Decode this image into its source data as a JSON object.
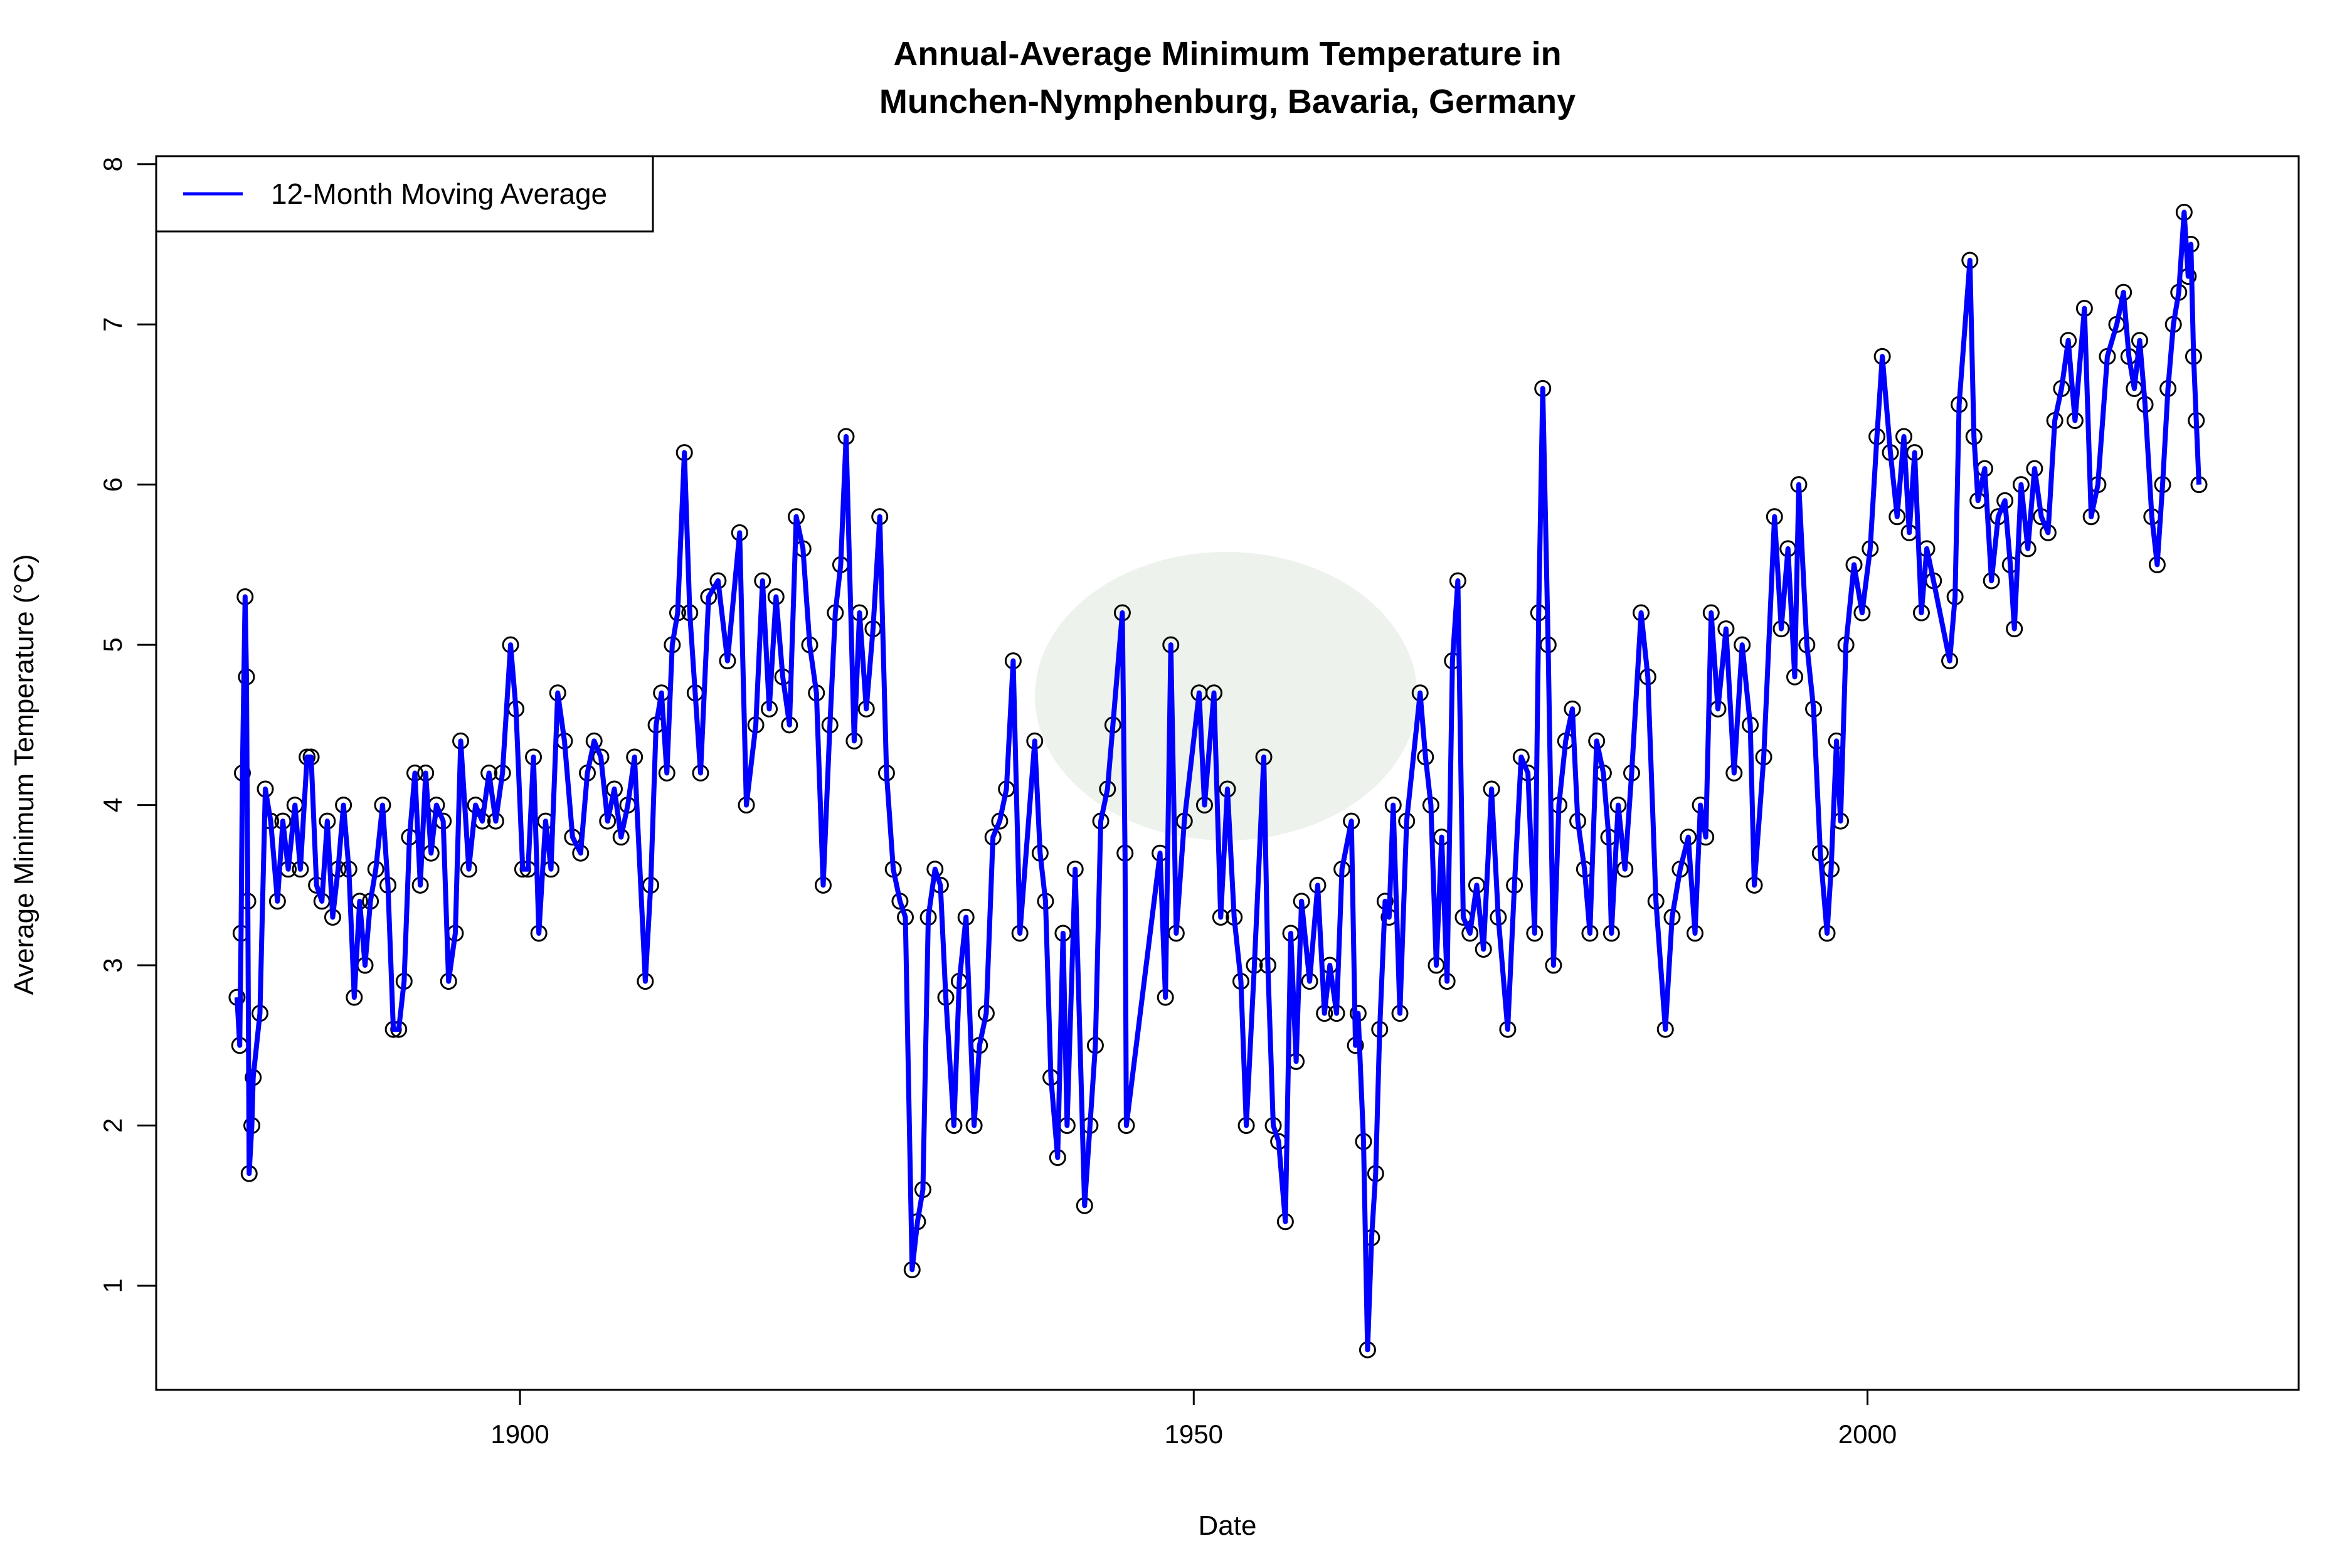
{
  "chart_data": {
    "type": "line",
    "title_line1": "Annual-Average Minimum Temperature in",
    "title_line2": "Munchen-Nymphenburg, Bavaria, Germany",
    "xlabel": "Date",
    "ylabel": "Average Minimum Temperature (°C)",
    "xlim": [
      1873,
      2032
    ],
    "ylim": [
      0.35,
      8.05
    ],
    "xticks": [
      1900,
      1950,
      2000
    ],
    "yticks": [
      1,
      2,
      3,
      4,
      5,
      6,
      7,
      8
    ],
    "grid": false,
    "legend": {
      "position": "top-left",
      "entries": [
        "12-Month Moving Average"
      ]
    },
    "colors": {
      "line": "#0000ff",
      "points": "#000000",
      "watermark": "#e6ece6"
    },
    "series": [
      {
        "name": "12-Month Moving Average",
        "points": [
          [
            1879.0,
            2.8
          ],
          [
            1879.2,
            2.5
          ],
          [
            1879.3,
            3.2
          ],
          [
            1879.4,
            4.2
          ],
          [
            1879.6,
            5.3
          ],
          [
            1879.7,
            4.8
          ],
          [
            1879.8,
            3.4
          ],
          [
            1879.9,
            1.7
          ],
          [
            1880.1,
            2.0
          ],
          [
            1880.2,
            2.3
          ],
          [
            1880.7,
            2.7
          ],
          [
            1881.1,
            4.1
          ],
          [
            1881.5,
            3.9
          ],
          [
            1882.0,
            3.4
          ],
          [
            1882.4,
            3.9
          ],
          [
            1882.8,
            3.6
          ],
          [
            1883.3,
            4.0
          ],
          [
            1883.7,
            3.6
          ],
          [
            1884.2,
            4.3
          ],
          [
            1884.5,
            4.3
          ],
          [
            1884.9,
            3.5
          ],
          [
            1885.3,
            3.4
          ],
          [
            1885.7,
            3.9
          ],
          [
            1886.1,
            3.3
          ],
          [
            1886.5,
            3.6
          ],
          [
            1886.9,
            4.0
          ],
          [
            1887.3,
            3.6
          ],
          [
            1887.7,
            2.8
          ],
          [
            1888.1,
            3.4
          ],
          [
            1888.5,
            3.0
          ],
          [
            1888.9,
            3.4
          ],
          [
            1889.3,
            3.6
          ],
          [
            1889.8,
            4.0
          ],
          [
            1890.2,
            3.5
          ],
          [
            1890.6,
            2.6
          ],
          [
            1891.0,
            2.6
          ],
          [
            1891.4,
            2.9
          ],
          [
            1891.8,
            3.8
          ],
          [
            1892.2,
            4.2
          ],
          [
            1892.6,
            3.5
          ],
          [
            1893.0,
            4.2
          ],
          [
            1893.4,
            3.7
          ],
          [
            1893.8,
            4.0
          ],
          [
            1894.3,
            3.9
          ],
          [
            1894.7,
            2.9
          ],
          [
            1895.2,
            3.2
          ],
          [
            1895.6,
            4.4
          ],
          [
            1896.2,
            3.6
          ],
          [
            1896.7,
            4.0
          ],
          [
            1897.2,
            3.9
          ],
          [
            1897.7,
            4.2
          ],
          [
            1898.2,
            3.9
          ],
          [
            1898.7,
            4.2
          ],
          [
            1899.3,
            5.0
          ],
          [
            1899.7,
            4.6
          ],
          [
            1900.2,
            3.6
          ],
          [
            1900.6,
            3.6
          ],
          [
            1901.0,
            4.3
          ],
          [
            1901.4,
            3.2
          ],
          [
            1901.9,
            3.9
          ],
          [
            1902.3,
            3.6
          ],
          [
            1902.8,
            4.7
          ],
          [
            1903.3,
            4.4
          ],
          [
            1903.9,
            3.8
          ],
          [
            1904.5,
            3.7
          ],
          [
            1905.0,
            4.2
          ],
          [
            1905.5,
            4.4
          ],
          [
            1906.0,
            4.3
          ],
          [
            1906.5,
            3.9
          ],
          [
            1907.0,
            4.1
          ],
          [
            1907.5,
            3.8
          ],
          [
            1908.0,
            4.0
          ],
          [
            1908.5,
            4.3
          ],
          [
            1909.3,
            2.9
          ],
          [
            1909.7,
            3.5
          ],
          [
            1910.1,
            4.5
          ],
          [
            1910.5,
            4.7
          ],
          [
            1910.9,
            4.2
          ],
          [
            1911.3,
            5.0
          ],
          [
            1911.7,
            5.2
          ],
          [
            1912.2,
            6.2
          ],
          [
            1912.6,
            5.2
          ],
          [
            1913.0,
            4.7
          ],
          [
            1913.4,
            4.2
          ],
          [
            1914.0,
            5.3
          ],
          [
            1914.7,
            5.4
          ],
          [
            1915.4,
            4.9
          ],
          [
            1916.3,
            5.7
          ],
          [
            1916.8,
            4.0
          ],
          [
            1917.5,
            4.5
          ],
          [
            1918.0,
            5.4
          ],
          [
            1918.5,
            4.6
          ],
          [
            1919.0,
            5.3
          ],
          [
            1919.5,
            4.8
          ],
          [
            1920.0,
            4.5
          ],
          [
            1920.5,
            5.8
          ],
          [
            1921.0,
            5.6
          ],
          [
            1921.5,
            5.0
          ],
          [
            1922.0,
            4.7
          ],
          [
            1922.5,
            3.5
          ],
          [
            1923.0,
            4.5
          ],
          [
            1923.4,
            5.2
          ],
          [
            1923.8,
            5.5
          ],
          [
            1924.2,
            6.3
          ],
          [
            1924.8,
            4.4
          ],
          [
            1925.2,
            5.2
          ],
          [
            1925.7,
            4.6
          ],
          [
            1926.2,
            5.1
          ],
          [
            1926.7,
            5.8
          ],
          [
            1927.2,
            4.2
          ],
          [
            1927.7,
            3.6
          ],
          [
            1928.2,
            3.4
          ],
          [
            1928.6,
            3.3
          ],
          [
            1929.1,
            1.1
          ],
          [
            1929.5,
            1.4
          ],
          [
            1929.9,
            1.6
          ],
          [
            1930.3,
            3.3
          ],
          [
            1930.8,
            3.6
          ],
          [
            1931.2,
            3.5
          ],
          [
            1931.6,
            2.8
          ],
          [
            1932.2,
            2.0
          ],
          [
            1932.6,
            2.9
          ],
          [
            1933.1,
            3.3
          ],
          [
            1933.7,
            2.0
          ],
          [
            1934.1,
            2.5
          ],
          [
            1934.6,
            2.7
          ],
          [
            1935.1,
            3.8
          ],
          [
            1935.6,
            3.9
          ],
          [
            1936.1,
            4.1
          ],
          [
            1936.6,
            4.9
          ],
          [
            1937.1,
            3.2
          ],
          [
            1938.2,
            4.4
          ],
          [
            1938.6,
            3.7
          ],
          [
            1939.0,
            3.4
          ],
          [
            1939.4,
            2.3
          ],
          [
            1939.9,
            1.8
          ],
          [
            1940.3,
            3.2
          ],
          [
            1940.6,
            2.0
          ],
          [
            1941.2,
            3.6
          ],
          [
            1941.9,
            1.5
          ],
          [
            1942.3,
            2.0
          ],
          [
            1942.7,
            2.5
          ],
          [
            1943.1,
            3.9
          ],
          [
            1943.6,
            4.1
          ],
          [
            1944.0,
            4.5
          ],
          [
            1944.7,
            5.2
          ],
          [
            1944.9,
            3.7
          ],
          [
            1945.0,
            2.0
          ],
          [
            1947.5,
            3.7
          ],
          [
            1947.9,
            2.8
          ],
          [
            1948.3,
            5.0
          ],
          [
            1948.7,
            3.2
          ],
          [
            1949.3,
            3.9
          ],
          [
            1950.4,
            4.7
          ],
          [
            1950.8,
            4.0
          ],
          [
            1951.5,
            4.7
          ],
          [
            1952.0,
            3.3
          ],
          [
            1952.5,
            4.1
          ],
          [
            1953.0,
            3.3
          ],
          [
            1953.5,
            2.9
          ],
          [
            1953.9,
            2.0
          ],
          [
            1954.5,
            3.0
          ],
          [
            1955.2,
            4.3
          ],
          [
            1955.5,
            3.0
          ],
          [
            1955.9,
            2.0
          ],
          [
            1956.3,
            1.9
          ],
          [
            1956.8,
            1.4
          ],
          [
            1957.2,
            3.2
          ],
          [
            1957.6,
            2.4
          ],
          [
            1958.0,
            3.4
          ],
          [
            1958.6,
            2.9
          ],
          [
            1959.2,
            3.5
          ],
          [
            1959.7,
            2.7
          ],
          [
            1960.1,
            3.0
          ],
          [
            1960.6,
            2.7
          ],
          [
            1961.0,
            3.6
          ],
          [
            1961.7,
            3.9
          ],
          [
            1962.0,
            2.5
          ],
          [
            1962.2,
            2.7
          ],
          [
            1962.6,
            1.9
          ],
          [
            1962.9,
            0.6
          ],
          [
            1963.2,
            1.3
          ],
          [
            1963.5,
            1.7
          ],
          [
            1963.8,
            2.6
          ],
          [
            1964.2,
            3.4
          ],
          [
            1964.5,
            3.3
          ],
          [
            1964.8,
            4.0
          ],
          [
            1965.3,
            2.7
          ],
          [
            1965.8,
            3.9
          ],
          [
            1966.8,
            4.7
          ],
          [
            1967.2,
            4.3
          ],
          [
            1967.6,
            4.0
          ],
          [
            1968.0,
            3.0
          ],
          [
            1968.4,
            3.8
          ],
          [
            1968.8,
            2.9
          ],
          [
            1969.2,
            4.9
          ],
          [
            1969.6,
            5.4
          ],
          [
            1970.0,
            3.3
          ],
          [
            1970.5,
            3.2
          ],
          [
            1971.0,
            3.5
          ],
          [
            1971.5,
            3.1
          ],
          [
            1972.1,
            4.1
          ],
          [
            1972.6,
            3.3
          ],
          [
            1973.3,
            2.6
          ],
          [
            1973.8,
            3.5
          ],
          [
            1974.3,
            4.3
          ],
          [
            1974.8,
            4.2
          ],
          [
            1975.3,
            3.2
          ],
          [
            1975.6,
            5.2
          ],
          [
            1975.9,
            6.6
          ],
          [
            1976.3,
            5.0
          ],
          [
            1976.7,
            3.0
          ],
          [
            1977.1,
            4.0
          ],
          [
            1977.6,
            4.4
          ],
          [
            1978.1,
            4.6
          ],
          [
            1978.5,
            3.9
          ],
          [
            1979.0,
            3.6
          ],
          [
            1979.4,
            3.2
          ],
          [
            1979.9,
            4.4
          ],
          [
            1980.4,
            4.2
          ],
          [
            1980.8,
            3.8
          ],
          [
            1981.0,
            3.2
          ],
          [
            1981.5,
            4.0
          ],
          [
            1982.0,
            3.6
          ],
          [
            1982.5,
            4.2
          ],
          [
            1983.2,
            5.2
          ],
          [
            1983.7,
            4.8
          ],
          [
            1984.3,
            3.4
          ],
          [
            1985.0,
            2.6
          ],
          [
            1985.5,
            3.3
          ],
          [
            1986.1,
            3.6
          ],
          [
            1986.7,
            3.8
          ],
          [
            1987.2,
            3.2
          ],
          [
            1987.6,
            4.0
          ],
          [
            1988.0,
            3.8
          ],
          [
            1988.4,
            5.2
          ],
          [
            1988.9,
            4.6
          ],
          [
            1989.5,
            5.1
          ],
          [
            1990.1,
            4.2
          ],
          [
            1990.7,
            5.0
          ],
          [
            1991.3,
            4.5
          ],
          [
            1991.6,
            3.5
          ],
          [
            1992.3,
            4.3
          ],
          [
            1993.1,
            5.8
          ],
          [
            1993.6,
            5.1
          ],
          [
            1994.1,
            5.6
          ],
          [
            1994.6,
            4.8
          ],
          [
            1994.9,
            6.0
          ],
          [
            1995.5,
            5.0
          ],
          [
            1996.0,
            4.6
          ],
          [
            1996.5,
            3.7
          ],
          [
            1997.0,
            3.2
          ],
          [
            1997.3,
            3.6
          ],
          [
            1997.7,
            4.4
          ],
          [
            1998.0,
            3.9
          ],
          [
            1998.4,
            5.0
          ],
          [
            1999.0,
            5.5
          ],
          [
            1999.6,
            5.2
          ],
          [
            2000.2,
            5.6
          ],
          [
            2000.7,
            6.3
          ],
          [
            2001.1,
            6.8
          ],
          [
            2001.7,
            6.2
          ],
          [
            2002.2,
            5.8
          ],
          [
            2002.7,
            6.3
          ],
          [
            2003.1,
            5.7
          ],
          [
            2003.5,
            6.2
          ],
          [
            2004.0,
            5.2
          ],
          [
            2004.4,
            5.6
          ],
          [
            2004.9,
            5.4
          ],
          [
            2006.1,
            4.9
          ],
          [
            2006.5,
            5.3
          ],
          [
            2006.8,
            6.5
          ],
          [
            2007.6,
            7.4
          ],
          [
            2007.9,
            6.3
          ],
          [
            2008.2,
            5.9
          ],
          [
            2008.7,
            6.1
          ],
          [
            2009.2,
            5.4
          ],
          [
            2009.7,
            5.8
          ],
          [
            2010.2,
            5.9
          ],
          [
            2010.6,
            5.5
          ],
          [
            2010.9,
            5.1
          ],
          [
            2011.4,
            6.0
          ],
          [
            2011.9,
            5.6
          ],
          [
            2012.4,
            6.1
          ],
          [
            2012.9,
            5.8
          ],
          [
            2013.4,
            5.7
          ],
          [
            2013.9,
            6.4
          ],
          [
            2014.4,
            6.6
          ],
          [
            2014.9,
            6.9
          ],
          [
            2015.4,
            6.4
          ],
          [
            2016.1,
            7.1
          ],
          [
            2016.6,
            5.8
          ],
          [
            2017.1,
            6.0
          ],
          [
            2017.8,
            6.8
          ],
          [
            2018.5,
            7.0
          ],
          [
            2019.0,
            7.2
          ],
          [
            2019.4,
            6.8
          ],
          [
            2019.8,
            6.6
          ],
          [
            2020.2,
            6.9
          ],
          [
            2020.6,
            6.5
          ],
          [
            2021.1,
            5.8
          ],
          [
            2021.5,
            5.5
          ],
          [
            2021.9,
            6.0
          ],
          [
            2022.3,
            6.6
          ],
          [
            2022.7,
            7.0
          ],
          [
            2023.1,
            7.2
          ],
          [
            2023.5,
            7.7
          ],
          [
            2023.8,
            7.3
          ],
          [
            2024.0,
            7.5
          ],
          [
            2024.2,
            6.8
          ],
          [
            2024.4,
            6.4
          ],
          [
            2024.6,
            6.0
          ]
        ]
      }
    ]
  }
}
